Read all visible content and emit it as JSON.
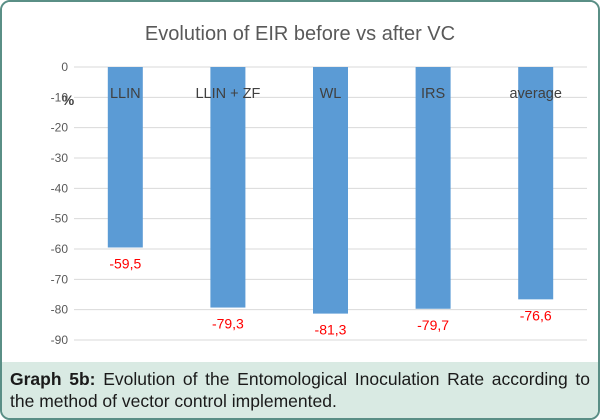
{
  "chart_data": {
    "type": "bar",
    "title": "Evolution of EIR before vs after VC",
    "ylabel": "%",
    "categories": [
      "LLIN",
      "LLIN + ZF",
      "WL",
      "IRS",
      "average"
    ],
    "values": [
      -59.5,
      -79.3,
      -81.3,
      -79.7,
      -76.6
    ],
    "data_labels": [
      "-59,5",
      "-79,3",
      "-81,3",
      "-79,7",
      "-76,6"
    ],
    "ylim": [
      -90,
      0
    ],
    "yticks": [
      0,
      -10,
      -20,
      -30,
      -40,
      -50,
      -60,
      -70,
      -80,
      -90
    ],
    "ytick_labels": [
      "0",
      "-10",
      "-20",
      "-30",
      "-40",
      "-50",
      "-60",
      "-70",
      "-80",
      "-90"
    ],
    "grid": true,
    "colors": {
      "bar": "#5b9bd5",
      "data_label": "#ff0000",
      "grid": "#d9d9d9",
      "text": "#595959"
    }
  },
  "caption": {
    "label": "Graph 5b:",
    "text": "Evolution of the Entomological Inoculation Rate according to the method of vector control implemented."
  }
}
